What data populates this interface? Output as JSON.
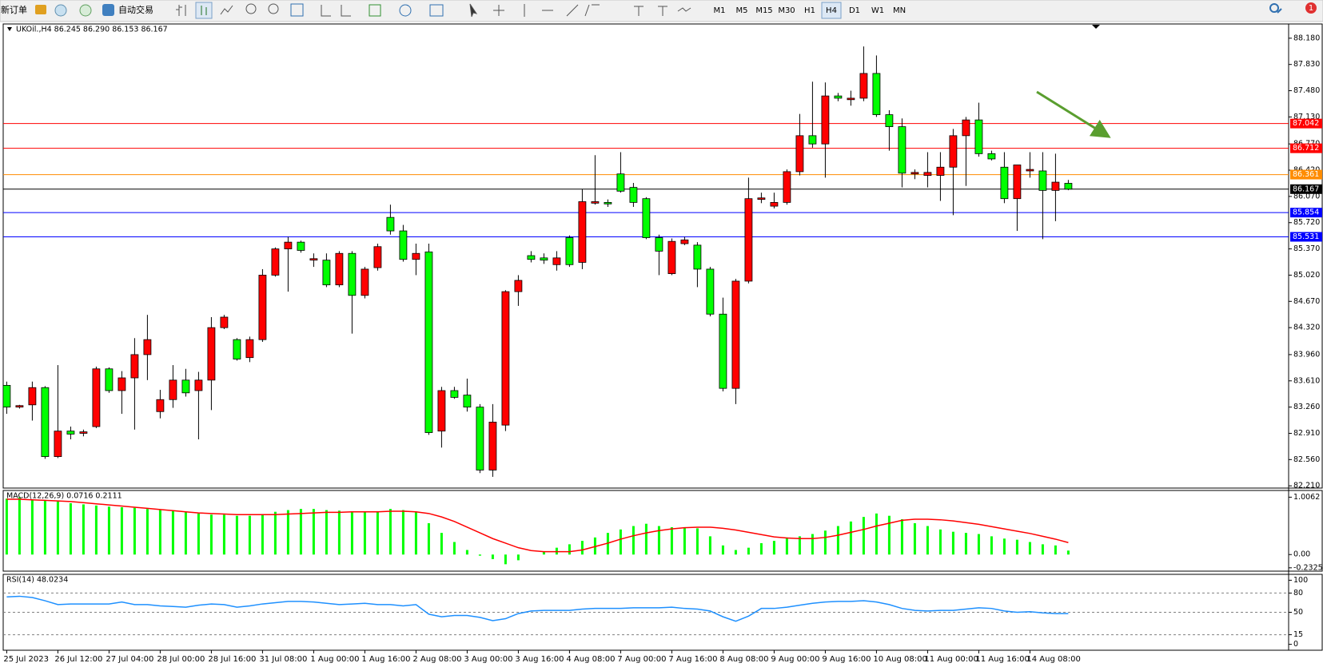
{
  "toolbar": {
    "new_order": "新订单",
    "auto_trading": "自动交易",
    "timeframes": [
      "M1",
      "M5",
      "M15",
      "M30",
      "H1",
      "H4",
      "D1",
      "W1",
      "MN"
    ],
    "active_index": 5,
    "notifications": 1
  },
  "chart_data": [
    {
      "type": "candlestick",
      "title": "UKOil.,H4 86.245 86.290 86.153 86.167",
      "up_color": "#ff0000",
      "down_color": "#00ff00",
      "categories": [
        "25 Jul 2023",
        null,
        null,
        null,
        "26 Jul 12:00",
        null,
        null,
        null,
        "27 Jul 04:00",
        null,
        null,
        null,
        "28 Jul 00:00",
        null,
        null,
        null,
        "28 Jul 16:00",
        null,
        null,
        null,
        "31 Jul 08:00",
        null,
        null,
        null,
        "1 Aug 00:00",
        null,
        null,
        null,
        "1 Aug 16:00",
        null,
        null,
        null,
        "2 Aug 08:00",
        null,
        null,
        null,
        "3 Aug 00:00",
        null,
        null,
        null,
        "3 Aug 16:00",
        null,
        null,
        null,
        "4 Aug 08:00",
        null,
        null,
        null,
        "7 Aug 00:00",
        null,
        null,
        null,
        "7 Aug 16:00",
        null,
        null,
        null,
        "8 Aug 08:00",
        null,
        null,
        null,
        "9 Aug 00:00",
        null,
        null,
        null,
        "9 Aug 16:00",
        null,
        null,
        null,
        "10 Aug 08:00",
        null,
        null,
        null,
        "11 Aug 00:00",
        null,
        null,
        null,
        "11 Aug 16:00",
        null,
        null,
        null,
        "14 Aug 08:00",
        null,
        null,
        null
      ],
      "open": [
        83.55,
        83.26,
        83.29,
        83.52,
        82.6,
        82.94,
        82.91,
        83.0,
        83.77,
        83.48,
        83.65,
        83.96,
        83.2,
        83.36,
        83.62,
        83.48,
        83.62,
        84.32,
        84.16,
        83.92,
        84.16,
        85.02,
        85.37,
        85.46,
        85.22,
        85.22,
        84.89,
        85.31,
        84.75,
        85.12,
        85.79,
        85.61,
        85.23,
        85.33,
        82.94,
        83.48,
        83.42,
        83.26,
        82.42,
        83.02,
        84.8,
        85.28,
        85.25,
        85.16,
        85.52,
        85.19,
        85.98,
        85.99,
        86.37,
        86.19,
        86.04,
        85.52,
        85.04,
        85.44,
        85.42,
        85.1,
        84.5,
        83.51,
        84.94,
        86.03,
        85.94,
        85.99,
        86.4,
        86.88,
        86.77,
        87.41,
        87.36,
        87.38,
        87.71,
        87.16,
        87.0,
        86.37,
        86.35,
        86.35,
        86.46,
        86.88,
        87.09,
        86.64,
        86.46,
        86.04,
        86.41,
        86.41,
        86.15,
        86.245
      ],
      "high": [
        83.6,
        83.29,
        83.6,
        83.54,
        83.82,
        83.0,
        82.96,
        83.8,
        83.79,
        83.74,
        84.18,
        84.49,
        83.49,
        83.82,
        83.77,
        83.73,
        84.46,
        84.49,
        84.18,
        84.2,
        85.1,
        85.39,
        85.53,
        85.48,
        85.31,
        85.31,
        85.34,
        85.34,
        85.13,
        85.44,
        85.96,
        85.69,
        85.44,
        85.44,
        83.53,
        83.53,
        83.64,
        83.3,
        83.3,
        84.82,
        85.02,
        85.34,
        85.31,
        85.34,
        85.55,
        86.17,
        86.62,
        86.03,
        86.66,
        86.25,
        86.06,
        85.56,
        85.51,
        85.53,
        85.46,
        85.13,
        84.72,
        84.97,
        86.32,
        86.12,
        86.12,
        86.43,
        87.17,
        87.6,
        87.59,
        87.45,
        87.48,
        88.07,
        87.95,
        87.22,
        87.11,
        86.43,
        86.66,
        86.66,
        86.97,
        87.13,
        87.32,
        86.68,
        86.66,
        86.49,
        86.66,
        86.66,
        86.64,
        86.29
      ],
      "low": [
        83.17,
        83.24,
        83.08,
        82.57,
        82.58,
        82.83,
        82.87,
        82.98,
        83.45,
        83.17,
        82.96,
        83.62,
        83.11,
        83.25,
        83.4,
        82.83,
        83.22,
        84.3,
        83.88,
        83.86,
        84.13,
        85.0,
        84.8,
        85.32,
        85.13,
        84.86,
        84.86,
        84.24,
        84.71,
        85.08,
        85.56,
        85.2,
        85.02,
        82.89,
        82.72,
        83.37,
        83.2,
        82.38,
        82.33,
        82.94,
        84.61,
        85.19,
        85.17,
        85.08,
        85.13,
        85.1,
        85.96,
        85.93,
        86.12,
        85.93,
        85.5,
        85.02,
        85.02,
        85.42,
        84.86,
        84.47,
        83.47,
        83.3,
        84.91,
        85.98,
        85.91,
        85.96,
        86.35,
        86.72,
        86.32,
        87.34,
        87.28,
        87.34,
        87.13,
        86.68,
        86.19,
        86.3,
        86.19,
        86.01,
        85.82,
        86.21,
        86.6,
        86.55,
        85.98,
        85.61,
        86.32,
        85.5,
        85.74,
        86.153
      ],
      "close": [
        83.26,
        83.28,
        83.52,
        82.6,
        82.94,
        82.9,
        82.93,
        83.77,
        83.48,
        83.65,
        83.96,
        84.16,
        83.36,
        83.62,
        83.45,
        83.62,
        84.32,
        84.46,
        83.9,
        84.16,
        85.02,
        85.37,
        85.46,
        85.35,
        85.24,
        84.89,
        85.31,
        84.75,
        85.1,
        85.4,
        85.61,
        85.23,
        85.31,
        82.92,
        83.48,
        83.39,
        83.26,
        82.42,
        83.06,
        84.8,
        84.95,
        85.23,
        85.22,
        85.25,
        85.16,
        86.0,
        86.0,
        85.97,
        86.14,
        85.99,
        85.52,
        85.34,
        85.47,
        85.49,
        85.1,
        84.5,
        83.51,
        84.94,
        86.04,
        86.05,
        85.99,
        86.4,
        86.88,
        86.77,
        87.41,
        87.38,
        87.38,
        87.71,
        87.16,
        87.0,
        86.38,
        86.39,
        86.39,
        86.46,
        86.88,
        87.09,
        86.64,
        86.57,
        86.04,
        86.49,
        86.43,
        86.15,
        86.26,
        86.167
      ],
      "price_lines": [
        {
          "value": 87.042,
          "color": "#ff0000"
        },
        {
          "value": 86.712,
          "color": "#ff0000"
        },
        {
          "value": 86.361,
          "color": "#ff8c00"
        },
        {
          "value": 86.167,
          "color": "#000000"
        },
        {
          "value": 85.854,
          "color": "#0000ff"
        },
        {
          "value": 85.531,
          "color": "#0000ff"
        }
      ],
      "ylim": [
        82.18,
        88.37
      ],
      "yticks": [
        {
          "value": 88.18,
          "label": "88.180"
        },
        {
          "value": 87.83,
          "label": "87.830"
        },
        {
          "value": 87.48,
          "label": "87.480"
        },
        {
          "value": 87.13,
          "label": "87.130"
        },
        {
          "value": 86.77,
          "label": "86.770"
        },
        {
          "value": 86.42,
          "label": "86.420"
        },
        {
          "value": 86.07,
          "label": "86.070"
        },
        {
          "value": 85.72,
          "label": "85.720"
        },
        {
          "value": 85.37,
          "label": "85.370"
        },
        {
          "value": 85.02,
          "label": "85.020"
        },
        {
          "value": 84.67,
          "label": "84.670"
        },
        {
          "value": 84.32,
          "label": "84.320"
        },
        {
          "value": 83.96,
          "label": "83.960"
        },
        {
          "value": 83.61,
          "label": "83.610"
        },
        {
          "value": 83.26,
          "label": "83.260"
        },
        {
          "value": 82.91,
          "label": "82.910"
        },
        {
          "value": 82.56,
          "label": "82.560"
        },
        {
          "value": 82.21,
          "label": "82.210"
        }
      ]
    },
    {
      "type": "macd",
      "title": "MACD(12,26,9) 0.0716 0.2111",
      "color": "#00ff00",
      "signal_color": "#ff0000",
      "values": [
        0.98,
        1.0,
        0.97,
        0.95,
        0.93,
        0.9,
        0.88,
        0.86,
        0.84,
        0.83,
        0.82,
        0.8,
        0.78,
        0.76,
        0.74,
        0.72,
        0.7,
        0.7,
        0.68,
        0.68,
        0.7,
        0.75,
        0.78,
        0.8,
        0.8,
        0.78,
        0.77,
        0.76,
        0.74,
        0.76,
        0.8,
        0.78,
        0.74,
        0.55,
        0.38,
        0.22,
        0.08,
        -0.02,
        -0.08,
        -0.17,
        -0.1,
        0.0,
        0.05,
        0.12,
        0.18,
        0.24,
        0.3,
        0.38,
        0.44,
        0.5,
        0.54,
        0.5,
        0.48,
        0.48,
        0.46,
        0.32,
        0.16,
        0.08,
        0.12,
        0.2,
        0.24,
        0.3,
        0.32,
        0.36,
        0.42,
        0.5,
        0.58,
        0.66,
        0.72,
        0.68,
        0.62,
        0.55,
        0.5,
        0.44,
        0.4,
        0.38,
        0.36,
        0.32,
        0.28,
        0.26,
        0.22,
        0.18,
        0.16,
        0.07
      ],
      "signal": [
        0.97,
        0.97,
        0.96,
        0.95,
        0.94,
        0.93,
        0.91,
        0.89,
        0.87,
        0.85,
        0.83,
        0.81,
        0.79,
        0.77,
        0.75,
        0.73,
        0.72,
        0.71,
        0.7,
        0.7,
        0.7,
        0.7,
        0.71,
        0.72,
        0.73,
        0.74,
        0.74,
        0.75,
        0.75,
        0.75,
        0.76,
        0.76,
        0.75,
        0.72,
        0.66,
        0.58,
        0.48,
        0.38,
        0.28,
        0.2,
        0.12,
        0.07,
        0.05,
        0.05,
        0.05,
        0.08,
        0.14,
        0.2,
        0.27,
        0.33,
        0.38,
        0.42,
        0.45,
        0.47,
        0.48,
        0.48,
        0.46,
        0.43,
        0.39,
        0.35,
        0.31,
        0.29,
        0.28,
        0.28,
        0.3,
        0.34,
        0.39,
        0.44,
        0.5,
        0.55,
        0.6,
        0.62,
        0.62,
        0.61,
        0.59,
        0.56,
        0.53,
        0.49,
        0.45,
        0.41,
        0.37,
        0.32,
        0.27,
        0.21
      ],
      "ylim": [
        -0.291,
        1.124
      ],
      "yticks": [
        1.0062,
        {
          "value": 0,
          "label": "0.00"
        },
        -0.2325
      ]
    },
    {
      "type": "line",
      "title": "RSI(14) 48.0234",
      "color": "#1e90ff",
      "values": [
        74,
        75,
        73,
        68,
        62,
        63,
        63,
        63,
        63,
        66,
        62,
        62,
        60,
        59,
        58,
        61,
        63,
        62,
        58,
        60,
        63,
        65,
        67,
        67,
        66,
        64,
        62,
        63,
        64,
        62,
        62,
        60,
        62,
        47,
        43,
        45,
        45,
        42,
        37,
        40,
        48,
        52,
        53,
        53,
        53,
        55,
        56,
        56,
        56,
        57,
        57,
        57,
        58,
        56,
        55,
        52,
        43,
        36,
        44,
        56,
        56,
        58,
        61,
        64,
        66,
        67,
        67,
        68,
        66,
        62,
        56,
        53,
        52,
        53,
        53,
        55,
        57,
        56,
        52,
        50,
        51,
        49,
        48,
        48.02
      ],
      "levels": [
        80,
        50,
        15
      ],
      "ylim": [
        -9.2,
        109.2
      ],
      "yticks": [
        100,
        80,
        50,
        15,
        0
      ]
    }
  ]
}
